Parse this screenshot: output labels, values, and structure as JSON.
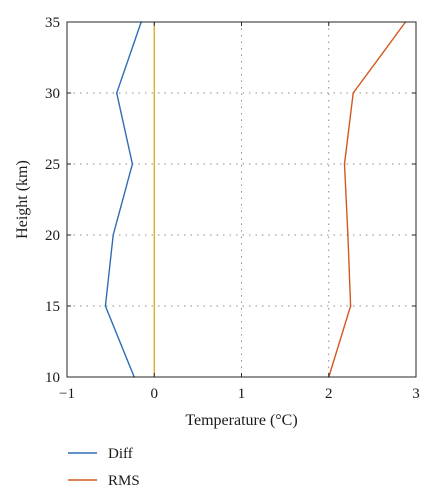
{
  "chart_data": {
    "type": "line",
    "title": "",
    "xlabel": "Temperature (°C)",
    "ylabel": "Height (km)",
    "xlim": [
      -1,
      3
    ],
    "ylim": [
      10,
      35
    ],
    "xticks": [
      -1,
      0,
      1,
      2,
      3
    ],
    "yticks": [
      10,
      15,
      20,
      25,
      30,
      35
    ],
    "xtick_labels": [
      "−1",
      "0",
      "1",
      "2",
      "3"
    ],
    "ytick_labels": [
      "10",
      "15",
      "20",
      "25",
      "30",
      "35"
    ],
    "grid": "dotted",
    "legend_placement": "bottom-left, below plot",
    "series": [
      {
        "name": "Diff",
        "color": "#2e6db4",
        "x": [
          -0.23,
          -0.56,
          -0.47,
          -0.25,
          -0.43,
          -0.15
        ],
        "y": [
          10,
          15,
          20,
          25,
          30,
          35
        ]
      },
      {
        "name": "RMS",
        "color": "#d4581e",
        "x": [
          2.0,
          2.25,
          2.22,
          2.18,
          2.28,
          2.88
        ],
        "y": [
          10,
          15,
          20,
          25,
          30,
          35
        ]
      }
    ],
    "reference_lines": [
      {
        "axis": "x",
        "value": 0,
        "color": "#e0a820"
      }
    ]
  }
}
